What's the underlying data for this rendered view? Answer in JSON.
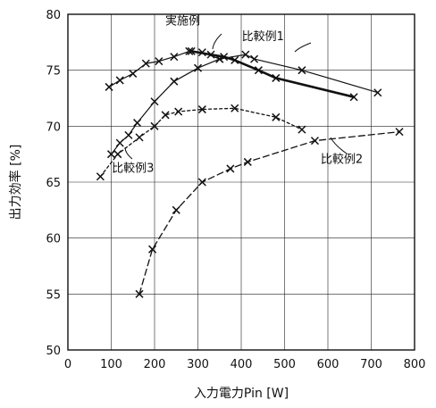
{
  "chart_data": {
    "type": "line",
    "title": "",
    "xlabel": "入力電力Pin [W]",
    "ylabel": "出力効率 [%]",
    "xlim": [
      0,
      800
    ],
    "ylim": [
      50,
      80
    ],
    "xticks": [
      0,
      100,
      200,
      300,
      400,
      500,
      600,
      700,
      800
    ],
    "yticks": [
      50,
      55,
      60,
      65,
      70,
      75,
      80
    ],
    "grid": true,
    "legend": "none",
    "series": [
      {
        "name": "実施例",
        "style": "solid-thin",
        "x": [
          95,
          120,
          150,
          180,
          210,
          245,
          280,
          310,
          350
        ],
        "y": [
          73.5,
          74.1,
          74.7,
          75.6,
          75.8,
          76.2,
          76.7,
          76.6,
          76.0
        ]
      },
      {
        "name": "実施例",
        "style": "solid-thin",
        "x": [
          100,
          120,
          140,
          160,
          200,
          245,
          300,
          350,
          410,
          430,
          540,
          715
        ],
        "y": [
          67.5,
          68.5,
          69.2,
          70.3,
          72.2,
          74.0,
          75.2,
          76.0,
          76.4,
          76.0,
          75.0,
          73.0
        ]
      },
      {
        "name": "比較例1",
        "style": "solid-thick",
        "x": [
          285,
          330,
          360,
          385,
          440,
          480,
          660
        ],
        "y": [
          76.7,
          76.4,
          76.2,
          75.9,
          75.0,
          74.3,
          72.6
        ]
      },
      {
        "name": "比較例3",
        "style": "dotted",
        "x": [
          75,
          115,
          165,
          200,
          225,
          255,
          310,
          385,
          480,
          540
        ],
        "y": [
          65.5,
          67.5,
          69.0,
          70.0,
          71.0,
          71.3,
          71.5,
          71.6,
          70.8,
          69.7
        ]
      },
      {
        "name": "比較例2",
        "style": "dashed",
        "x": [
          165,
          195,
          250,
          310,
          375,
          415,
          570,
          765
        ],
        "y": [
          55.0,
          59.0,
          62.5,
          65.0,
          66.2,
          66.8,
          68.7,
          69.5
        ]
      }
    ],
    "annotations": [
      {
        "text": "実施例",
        "x": 265,
        "y": 79.1
      },
      {
        "text": "比較例1",
        "x": 450,
        "y": 77.7
      },
      {
        "text": "比較例3",
        "x": 150,
        "y": 65.9
      },
      {
        "text": "比較例2",
        "x": 632,
        "y": 66.7
      }
    ]
  }
}
